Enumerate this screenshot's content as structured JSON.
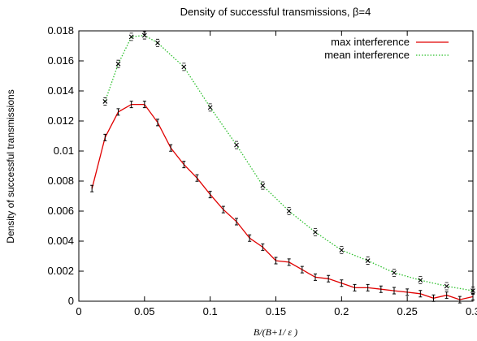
{
  "chart_data": {
    "type": "line",
    "title": "Density of successful transmissions, β=4",
    "xlabel": "B/(B+1/ ε )",
    "ylabel": "Density of successful transmissions",
    "xlim": [
      0,
      0.3
    ],
    "ylim": [
      0,
      0.018
    ],
    "x_ticks": [
      "0",
      "0.05",
      "0.1",
      "0.15",
      "0.2",
      "0.25",
      "0.3"
    ],
    "y_ticks": [
      "0",
      "0.002",
      "0.004",
      "0.006",
      "0.008",
      "0.01",
      "0.012",
      "0.014",
      "0.016",
      "0.018"
    ],
    "grid": false,
    "legend_position": "top-right",
    "series": [
      {
        "name": "max interference",
        "color": "#e00000",
        "line_style": "solid",
        "marker": "error-bar",
        "points": [
          [
            0.01,
            0.0075
          ],
          [
            0.02,
            0.0109
          ],
          [
            0.03,
            0.0126
          ],
          [
            0.04,
            0.0131
          ],
          [
            0.05,
            0.0131
          ],
          [
            0.06,
            0.0119
          ],
          [
            0.07,
            0.0102
          ],
          [
            0.08,
            0.0091
          ],
          [
            0.09,
            0.0082
          ],
          [
            0.1,
            0.0071
          ],
          [
            0.11,
            0.0061
          ],
          [
            0.12,
            0.0053
          ],
          [
            0.13,
            0.0042
          ],
          [
            0.14,
            0.0036
          ],
          [
            0.15,
            0.0027
          ],
          [
            0.16,
            0.0026
          ],
          [
            0.17,
            0.0021
          ],
          [
            0.18,
            0.0016
          ],
          [
            0.19,
            0.0015
          ],
          [
            0.2,
            0.0012
          ],
          [
            0.21,
            0.0009
          ],
          [
            0.22,
            0.0009
          ],
          [
            0.23,
            0.0008
          ],
          [
            0.24,
            0.0007
          ],
          [
            0.25,
            0.0006
          ],
          [
            0.26,
            0.0005
          ],
          [
            0.27,
            0.0002
          ],
          [
            0.28,
            0.0004
          ],
          [
            0.29,
            0.0001
          ],
          [
            0.3,
            0.0003
          ]
        ]
      },
      {
        "name": "mean interference",
        "color": "#2ec02e",
        "line_style": "dotted",
        "marker": "x",
        "points": [
          [
            0.02,
            0.0133
          ],
          [
            0.03,
            0.0158
          ],
          [
            0.04,
            0.0176
          ],
          [
            0.05,
            0.0177
          ],
          [
            0.06,
            0.0172
          ],
          [
            0.08,
            0.0156
          ],
          [
            0.1,
            0.0129
          ],
          [
            0.12,
            0.0104
          ],
          [
            0.14,
            0.0077
          ],
          [
            0.16,
            0.006
          ],
          [
            0.18,
            0.0046
          ],
          [
            0.2,
            0.0034
          ],
          [
            0.22,
            0.0027
          ],
          [
            0.24,
            0.0019
          ],
          [
            0.26,
            0.0014
          ],
          [
            0.28,
            0.001
          ],
          [
            0.3,
            0.0007
          ]
        ]
      }
    ]
  }
}
